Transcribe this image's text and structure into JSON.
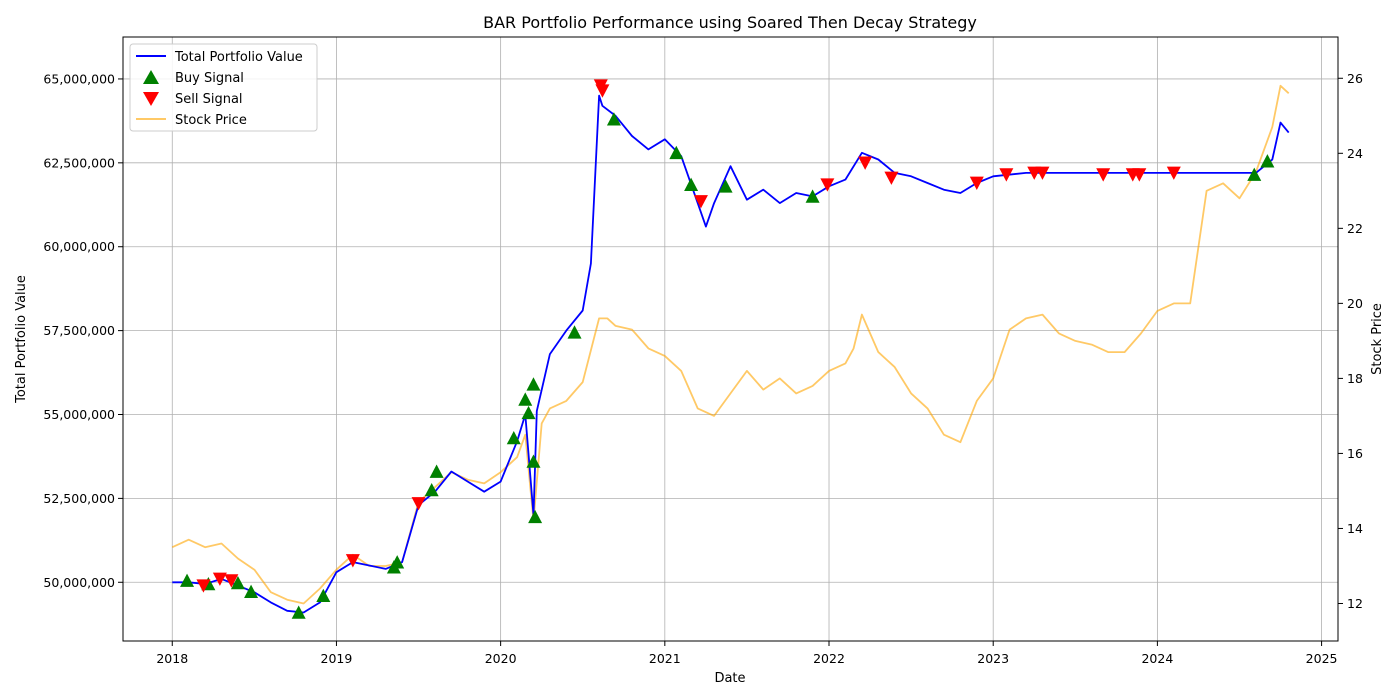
{
  "chart_data": {
    "type": "line",
    "title": "BAR Portfolio Performance using Soared Then Decay Strategy",
    "xlabel": "Date",
    "ylabel": "Total Portfolio Value",
    "y2label": "Stock Price",
    "xlim": [
      2017.7,
      2025.1
    ],
    "ylim": [
      48250000,
      66250000
    ],
    "y2lim": [
      11.0,
      27.1
    ],
    "x_ticks": [
      2018,
      2019,
      2020,
      2021,
      2022,
      2023,
      2024,
      2025
    ],
    "y_ticks": [
      50000000,
      52500000,
      55000000,
      57500000,
      60000000,
      62500000,
      65000000
    ],
    "y_tick_labels": [
      "50,000,000",
      "52,500,000",
      "55,000,000",
      "57,500,000",
      "60,000,000",
      "62,500,000",
      "65,000,000"
    ],
    "y2_ticks": [
      12,
      14,
      16,
      18,
      20,
      22,
      24,
      26
    ],
    "grid": true,
    "legend_position": "top-left",
    "colors": {
      "portfolio": "#0000ff",
      "buy": "#008000",
      "sell": "#ff0000",
      "stock": "#ffa500"
    },
    "series": [
      {
        "name": "Total Portfolio Value",
        "axis": "left",
        "x": [
          2018.0,
          2018.1,
          2018.2,
          2018.3,
          2018.4,
          2018.5,
          2018.6,
          2018.7,
          2018.8,
          2018.9,
          2019.0,
          2019.1,
          2019.2,
          2019.3,
          2019.4,
          2019.5,
          2019.6,
          2019.7,
          2019.8,
          2019.9,
          2020.0,
          2020.1,
          2020.15,
          2020.2,
          2020.22,
          2020.3,
          2020.4,
          2020.5,
          2020.55,
          2020.6,
          2020.62,
          2020.7,
          2020.8,
          2020.9,
          2021.0,
          2021.1,
          2021.2,
          2021.25,
          2021.3,
          2021.4,
          2021.5,
          2021.6,
          2021.7,
          2021.8,
          2021.9,
          2022.0,
          2022.1,
          2022.2,
          2022.3,
          2022.4,
          2022.5,
          2022.6,
          2022.7,
          2022.8,
          2022.9,
          2023.0,
          2023.2,
          2023.4,
          2023.6,
          2023.8,
          2024.0,
          2024.2,
          2024.4,
          2024.6,
          2024.7,
          2024.75,
          2024.8
        ],
        "y": [
          50000000,
          50000000,
          49950000,
          50100000,
          49900000,
          49700000,
          49400000,
          49150000,
          49100000,
          49400000,
          50300000,
          50600000,
          50500000,
          50400000,
          50600000,
          52300000,
          52700000,
          53300000,
          53000000,
          52700000,
          53000000,
          54200000,
          55000000,
          52000000,
          55100000,
          56800000,
          57500000,
          58100000,
          59500000,
          64500000,
          64200000,
          63900000,
          63300000,
          62900000,
          63200000,
          62700000,
          61300000,
          60600000,
          61300000,
          62400000,
          61400000,
          61700000,
          61300000,
          61600000,
          61500000,
          61800000,
          62000000,
          62800000,
          62600000,
          62200000,
          62100000,
          61900000,
          61700000,
          61600000,
          61900000,
          62100000,
          62200000,
          62200000,
          62200000,
          62200000,
          62200000,
          62200000,
          62200000,
          62200000,
          62600000,
          63700000,
          63400000
        ]
      },
      {
        "name": "Stock Price",
        "axis": "right",
        "x": [
          2018.0,
          2018.1,
          2018.2,
          2018.3,
          2018.4,
          2018.5,
          2018.6,
          2018.7,
          2018.8,
          2018.9,
          2019.0,
          2019.1,
          2019.2,
          2019.3,
          2019.4,
          2019.5,
          2019.6,
          2019.7,
          2019.8,
          2019.9,
          2020.0,
          2020.1,
          2020.15,
          2020.2,
          2020.25,
          2020.3,
          2020.4,
          2020.5,
          2020.6,
          2020.65,
          2020.7,
          2020.8,
          2020.9,
          2021.0,
          2021.1,
          2021.2,
          2021.3,
          2021.4,
          2021.5,
          2021.6,
          2021.7,
          2021.8,
          2021.9,
          2022.0,
          2022.1,
          2022.15,
          2022.2,
          2022.3,
          2022.4,
          2022.5,
          2022.6,
          2022.7,
          2022.8,
          2022.9,
          2023.0,
          2023.1,
          2023.2,
          2023.3,
          2023.4,
          2023.5,
          2023.6,
          2023.7,
          2023.8,
          2023.9,
          2024.0,
          2024.1,
          2024.2,
          2024.3,
          2024.4,
          2024.5,
          2024.6,
          2024.7,
          2024.75,
          2024.8
        ],
        "y": [
          13.5,
          13.7,
          13.5,
          13.6,
          13.2,
          12.9,
          12.3,
          12.1,
          12.0,
          12.4,
          12.9,
          13.3,
          13.0,
          13.0,
          13.1,
          14.7,
          15.1,
          15.5,
          15.3,
          15.2,
          15.5,
          15.9,
          16.5,
          14.2,
          16.8,
          17.2,
          17.4,
          17.9,
          19.6,
          19.6,
          19.4,
          19.3,
          18.8,
          18.6,
          18.2,
          17.2,
          17.0,
          17.6,
          18.2,
          17.7,
          18.0,
          17.6,
          17.8,
          18.2,
          18.4,
          18.8,
          19.7,
          18.7,
          18.3,
          17.6,
          17.2,
          16.5,
          16.3,
          17.4,
          18.0,
          19.3,
          19.6,
          19.7,
          19.2,
          19.0,
          18.9,
          18.7,
          18.7,
          19.2,
          19.8,
          20.0,
          20.0,
          23.0,
          23.2,
          22.8,
          23.5,
          24.7,
          25.8,
          25.6
        ]
      }
    ],
    "buy_signals": [
      {
        "x": 2018.09,
        "y": 50050000
      },
      {
        "x": 2018.22,
        "y": 49950000
      },
      {
        "x": 2018.4,
        "y": 49980000
      },
      {
        "x": 2018.48,
        "y": 49720000
      },
      {
        "x": 2018.77,
        "y": 49100000
      },
      {
        "x": 2018.92,
        "y": 49600000
      },
      {
        "x": 2019.35,
        "y": 50450000
      },
      {
        "x": 2019.37,
        "y": 50600000
      },
      {
        "x": 2019.58,
        "y": 52750000
      },
      {
        "x": 2019.61,
        "y": 53300000
      },
      {
        "x": 2020.08,
        "y": 54300000
      },
      {
        "x": 2020.15,
        "y": 55450000
      },
      {
        "x": 2020.17,
        "y": 55050000
      },
      {
        "x": 2020.2,
        "y": 55900000
      },
      {
        "x": 2020.2,
        "y": 53600000
      },
      {
        "x": 2020.21,
        "y": 51950000
      },
      {
        "x": 2020.45,
        "y": 57450000
      },
      {
        "x": 2020.69,
        "y": 63800000
      },
      {
        "x": 2021.07,
        "y": 62800000
      },
      {
        "x": 2021.16,
        "y": 61850000
      },
      {
        "x": 2021.37,
        "y": 61800000
      },
      {
        "x": 2021.9,
        "y": 61500000
      },
      {
        "x": 2024.59,
        "y": 62150000
      },
      {
        "x": 2024.67,
        "y": 62550000
      }
    ],
    "sell_signals": [
      {
        "x": 2018.19,
        "y": 49900000
      },
      {
        "x": 2018.29,
        "y": 50100000
      },
      {
        "x": 2018.36,
        "y": 50050000
      },
      {
        "x": 2019.1,
        "y": 50650000
      },
      {
        "x": 2019.5,
        "y": 52350000
      },
      {
        "x": 2020.61,
        "y": 64800000
      },
      {
        "x": 2020.62,
        "y": 64650000
      },
      {
        "x": 2021.22,
        "y": 61350000
      },
      {
        "x": 2021.99,
        "y": 61850000
      },
      {
        "x": 2022.22,
        "y": 62500000
      },
      {
        "x": 2022.38,
        "y": 62050000
      },
      {
        "x": 2022.9,
        "y": 61900000
      },
      {
        "x": 2023.08,
        "y": 62150000
      },
      {
        "x": 2023.25,
        "y": 62200000
      },
      {
        "x": 2023.3,
        "y": 62200000
      },
      {
        "x": 2023.67,
        "y": 62150000
      },
      {
        "x": 2023.85,
        "y": 62150000
      },
      {
        "x": 2023.89,
        "y": 62150000
      },
      {
        "x": 2024.1,
        "y": 62200000
      }
    ],
    "legend": [
      {
        "label": "Total Portfolio Value",
        "kind": "line",
        "color": "#0000ff"
      },
      {
        "label": "Buy Signal",
        "kind": "triangle-up",
        "color": "#008000"
      },
      {
        "label": "Sell Signal",
        "kind": "triangle-down",
        "color": "#ff0000"
      },
      {
        "label": "Stock Price",
        "kind": "line",
        "color": "#ffa500"
      }
    ]
  }
}
